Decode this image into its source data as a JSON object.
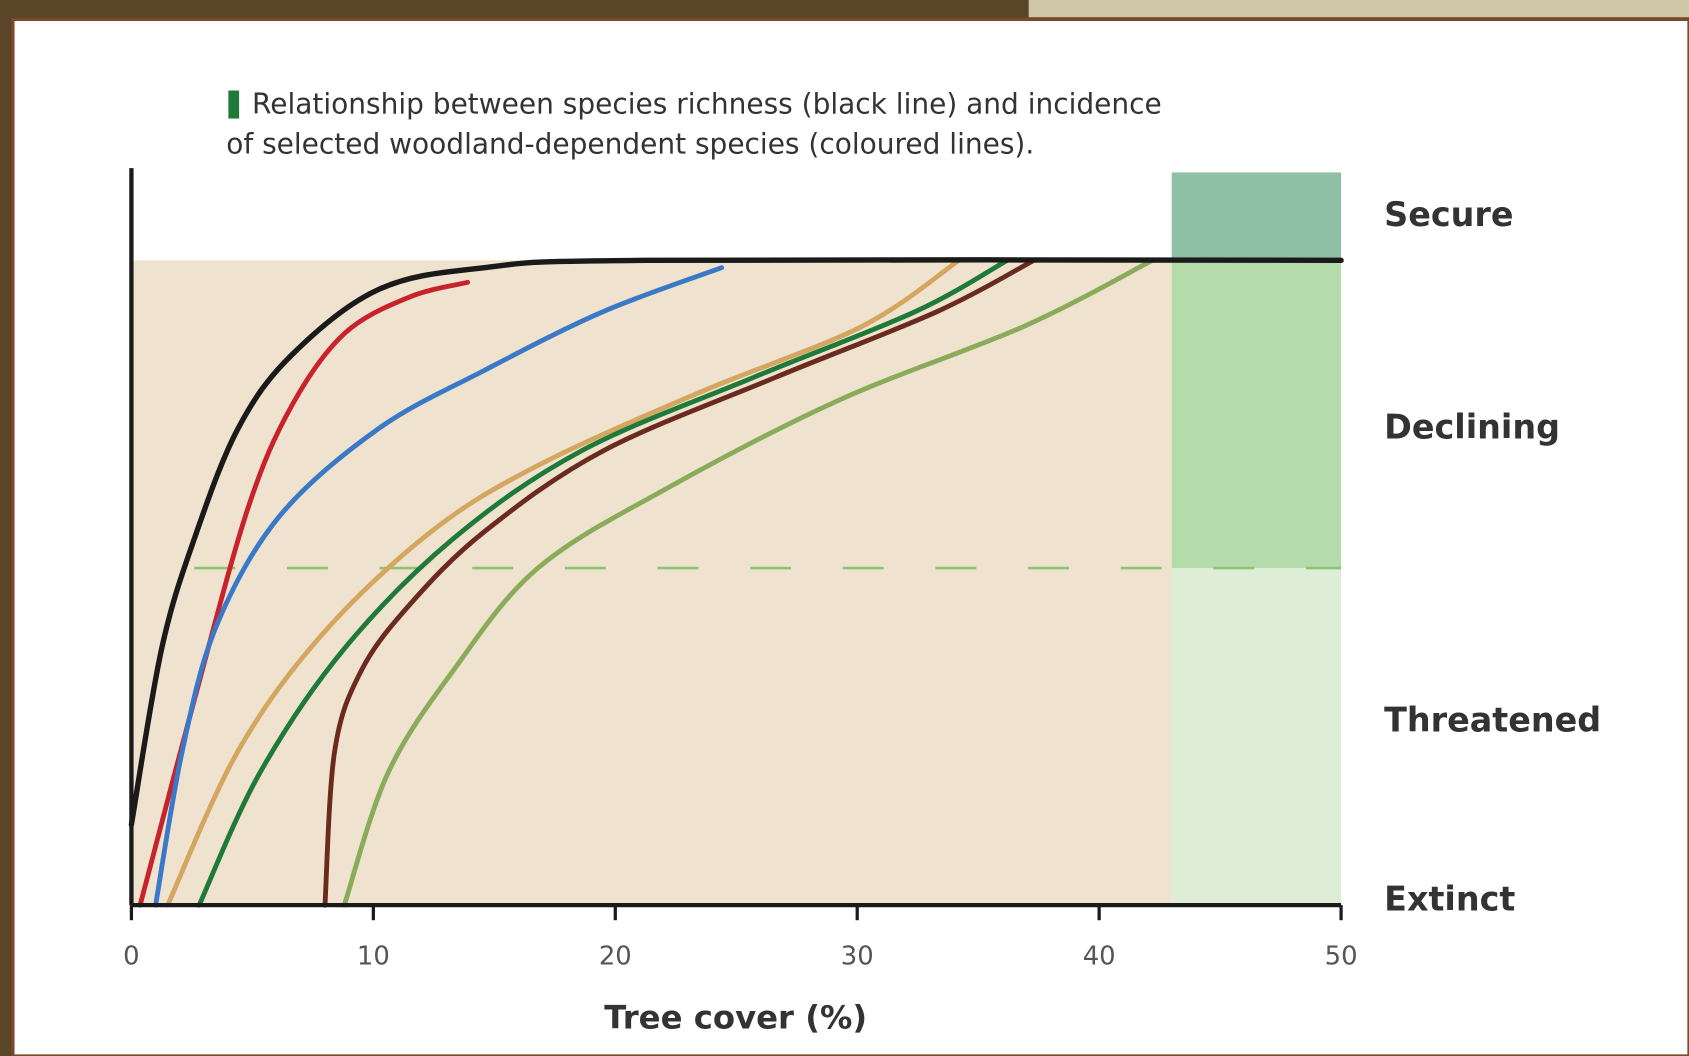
{
  "chart_data": {
    "type": "line",
    "title": [
      "Relationship between species richness (black line) and incidence",
      "of selected woodland-dependent species (coloured lines)."
    ],
    "xlabel": "Tree cover (%)",
    "xlim": [
      0,
      50
    ],
    "xticks": [
      0,
      10,
      20,
      30,
      40,
      50
    ],
    "ylim": [
      0,
      100
    ],
    "zone_labels": [
      {
        "value": 94,
        "label": "Secure"
      },
      {
        "value": 65,
        "label": "Declining"
      },
      {
        "value": 25,
        "label": "Threatened"
      },
      {
        "value": 0,
        "label": "Extinct"
      }
    ],
    "bands": [
      {
        "from": 88,
        "to": 100,
        "x_from": 43,
        "color": "#8fbfa4"
      },
      {
        "from": 46,
        "to": 88,
        "x_from": 43,
        "color": "#b3dcaa"
      },
      {
        "from": 0,
        "to": 46,
        "x_from": 43,
        "color": "#ddedd6"
      }
    ],
    "shading": {
      "xlim": [
        0,
        43
      ],
      "ylim": [
        0,
        88
      ],
      "color": "#efe3cf"
    },
    "threshold": {
      "value": 46,
      "x_from": 2.6,
      "color": "#8cc474"
    },
    "series": [
      {
        "color": "#c8232b",
        "x": [
          0.36,
          2.6,
          4.8,
          6.6,
          8.8,
          11.5,
          13.9
        ],
        "values": [
          0,
          28,
          54,
          68,
          78,
          83,
          85
        ]
      },
      {
        "color": "#3a78c8",
        "x": [
          1.0,
          2.1,
          3.5,
          6.1,
          10.2,
          14.6,
          19.5,
          24.4
        ],
        "values": [
          0,
          21,
          38,
          53,
          65,
          73,
          81,
          87
        ]
      },
      {
        "color": "#d4a660",
        "x": [
          1.5,
          4.4,
          7.9,
          12.4,
          16.8,
          23.5,
          30.2,
          34.2
        ],
        "values": [
          0,
          21,
          37,
          51,
          60,
          70,
          79,
          88
        ]
      },
      {
        "color": "#1f7a3a",
        "x": [
          2.8,
          5.3,
          8.8,
          13.3,
          18.6,
          25.7,
          32.4,
          36.2
        ],
        "values": [
          0,
          18,
          35,
          50,
          62,
          72,
          81,
          88
        ]
      },
      {
        "color": "#6b2a1e",
        "x": [
          8.0,
          8.4,
          9.5,
          11.5,
          14.6,
          19.5,
          26.6,
          33.3,
          37.3
        ],
        "values": [
          0,
          21,
          32,
          41,
          51,
          62,
          72,
          81,
          88
        ]
      },
      {
        "color": "#8aab5a",
        "x": [
          8.8,
          10.6,
          13.3,
          16.8,
          22.2,
          29.3,
          36.9,
          42.2
        ],
        "values": [
          0,
          18,
          32,
          46,
          57,
          69,
          79,
          88
        ]
      },
      {
        "color": "#1a1a1a",
        "x": [
          0,
          1.25,
          2.6,
          4.4,
          6.6,
          10.2,
          14.6,
          21.3,
          50
        ],
        "values": [
          11,
          35,
          50,
          65,
          75,
          84,
          87,
          88,
          88
        ]
      }
    ]
  }
}
